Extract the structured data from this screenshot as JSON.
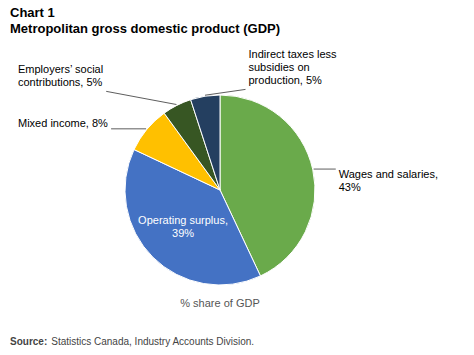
{
  "chart_data": {
    "type": "pie",
    "title": "Chart 1",
    "subtitle": "Metropolitan gross domestic product (GDP)",
    "categories": [
      "Wages and salaries,\n43%",
      "Operating surplus,\n39%",
      "Mixed income, 8%",
      "Employers’ social\ncontributions, 5%",
      "Indirect taxes less\nsubsidies on\nproduction, 5%"
    ],
    "values": [
      43,
      39,
      8,
      5,
      5
    ],
    "colors": [
      "#6aaa4b",
      "#4472c4",
      "#ffc000",
      "#375623",
      "#243f60"
    ],
    "xlabel": "% share of GDP",
    "annotations": [
      "Source:",
      "Statistics Canada, Industry Accounts Division."
    ]
  }
}
